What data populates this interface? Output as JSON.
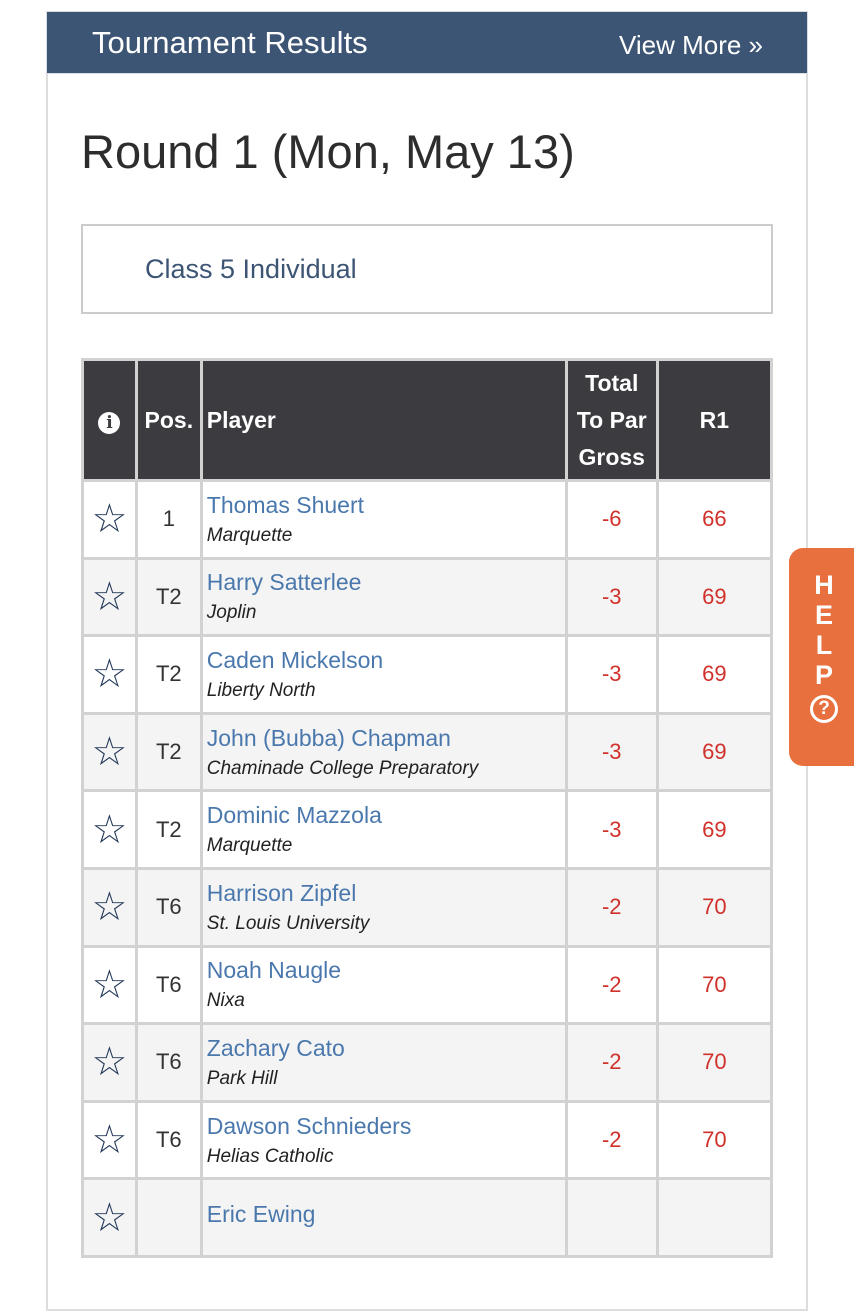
{
  "header": {
    "title": "Tournament Results",
    "view_more": "View More »"
  },
  "round_title": "Round 1 (Mon, May 13)",
  "division": "Class 5 Individual",
  "table": {
    "columns": {
      "info": "i",
      "pos": "Pos.",
      "player": "Player",
      "total_1": "Total",
      "total_2": "To Par",
      "total_3": "Gross",
      "r1": "R1"
    },
    "rows": [
      {
        "pos": "1",
        "name": "Thomas Shuert",
        "school": "Marquette",
        "to_par": "-6",
        "r1": "66"
      },
      {
        "pos": "T2",
        "name": "Harry Satterlee",
        "school": "Joplin",
        "to_par": "-3",
        "r1": "69"
      },
      {
        "pos": "T2",
        "name": "Caden Mickelson",
        "school": "Liberty North",
        "to_par": "-3",
        "r1": "69"
      },
      {
        "pos": "T2",
        "name": "John (Bubba) Chapman",
        "school": "Chaminade College Preparatory",
        "to_par": "-3",
        "r1": "69"
      },
      {
        "pos": "T2",
        "name": "Dominic Mazzola",
        "school": "Marquette",
        "to_par": "-3",
        "r1": "69"
      },
      {
        "pos": "T6",
        "name": "Harrison Zipfel",
        "school": "St. Louis University",
        "to_par": "-2",
        "r1": "70"
      },
      {
        "pos": "T6",
        "name": "Noah Naugle",
        "school": "Nixa",
        "to_par": "-2",
        "r1": "70"
      },
      {
        "pos": "T6",
        "name": "Zachary Cato",
        "school": "Park Hill",
        "to_par": "-2",
        "r1": "70"
      },
      {
        "pos": "T6",
        "name": "Dawson Schnieders",
        "school": "Helias Catholic",
        "to_par": "-2",
        "r1": "70"
      },
      {
        "pos": "",
        "name": "Eric Ewing",
        "school": "",
        "to_par": "",
        "r1": ""
      }
    ]
  },
  "help": {
    "letters": [
      "H",
      "E",
      "L",
      "P"
    ],
    "icon": "?"
  },
  "colors": {
    "header_bg": "#3d5574",
    "link": "#4a78ad",
    "score": "#d0312b",
    "help_bg": "#e8703f"
  }
}
